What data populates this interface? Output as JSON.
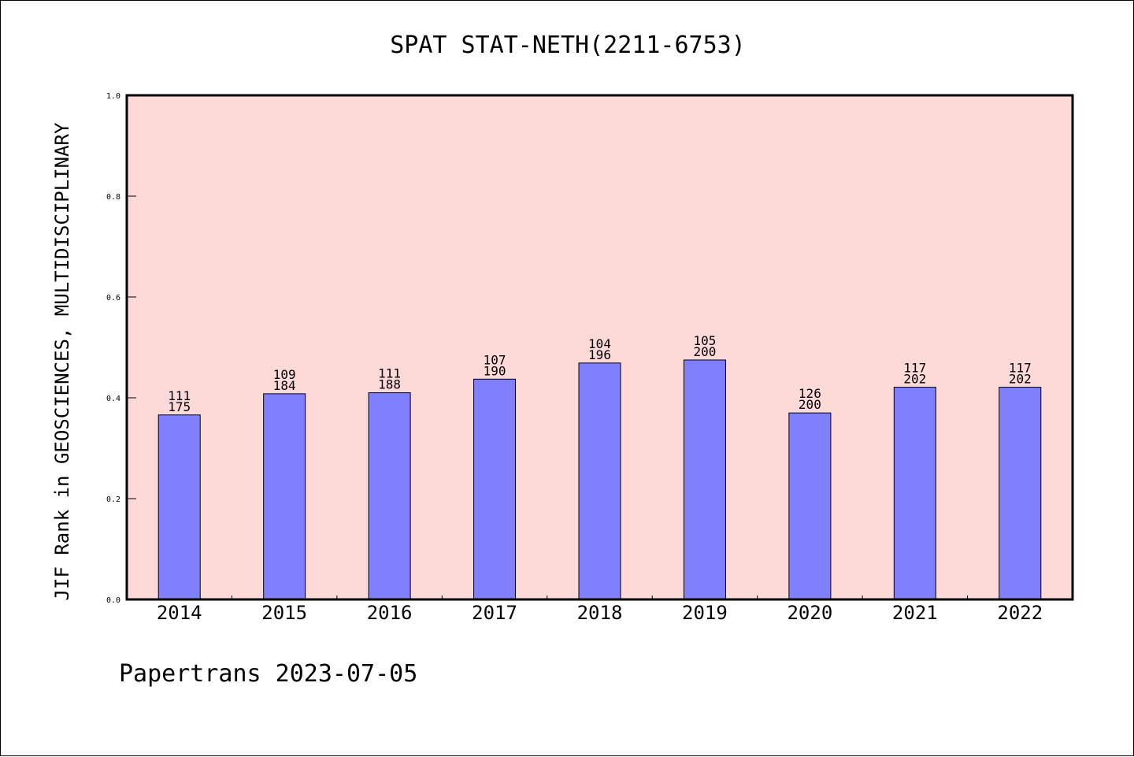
{
  "chart_data": {
    "type": "bar",
    "title": "SPAT STAT-NETH(2211-6753)",
    "xlabel": "",
    "ylabel": "JIF Rank in GEOSCIENCES, MULTIDISCIPLINARY",
    "categories": [
      "2014",
      "2015",
      "2016",
      "2017",
      "2018",
      "2019",
      "2020",
      "2021",
      "2022"
    ],
    "values": [
      0.366,
      0.408,
      0.41,
      0.437,
      0.469,
      0.475,
      0.37,
      0.421,
      0.421
    ],
    "rank_labels": [
      "111",
      "109",
      "111",
      "107",
      "104",
      "105",
      "126",
      "117",
      "117"
    ],
    "total_labels": [
      "175",
      "184",
      "188",
      "190",
      "196",
      "200",
      "200",
      "202",
      "202"
    ],
    "ylim": [
      0,
      1.0
    ],
    "yticks": [
      "0.0",
      "0.2",
      "0.4",
      "0.6",
      "0.8",
      "1.0"
    ],
    "grid": false,
    "legend": "none",
    "colors": {
      "plot_background": "#fdd9d7",
      "bar_fill": "#8080ff",
      "bar_edge": "#000000"
    }
  },
  "footer": "Papertrans 2023-07-05"
}
